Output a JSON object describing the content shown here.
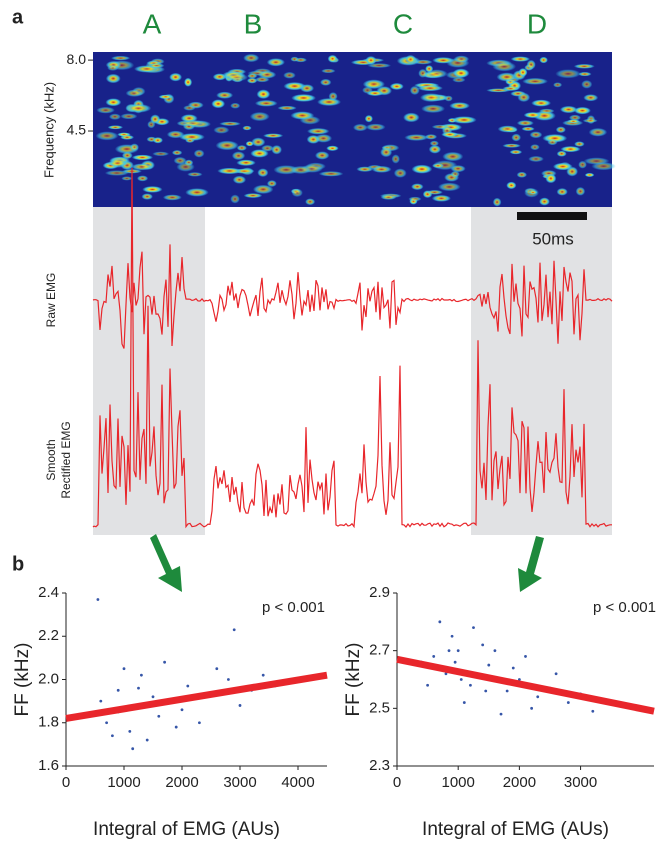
{
  "panel_a": {
    "label": "a",
    "syllables": [
      "A",
      "B",
      "C",
      "D"
    ],
    "spectrogram": {
      "ylabel": "Frequency (kHz)",
      "ylim": [
        0.75,
        8.4
      ],
      "yticks": [
        {
          "value": 8,
          "label": "8.0"
        },
        4.5
      ]
    },
    "scale_bar": "50ms",
    "raw_label": "Raw EMG",
    "smooth_label": [
      "Smooth",
      "Rectified EMG"
    ]
  },
  "panel_b": {
    "label": "b"
  },
  "chart_data": [
    {
      "type": "scatter",
      "annotation": "p < 0.001",
      "xlabel": "Integral of EMG (AUs)",
      "ylabel": "FF (kHz)",
      "xlim": [
        0,
        4500
      ],
      "ylim": [
        1.6,
        2.4
      ],
      "xticks": [
        0,
        1000,
        2000,
        3000,
        4000
      ],
      "yticks": [
        1.6,
        1.8,
        {
          "value": 2.0,
          "label": "2.0"
        },
        2.2,
        2.4
      ],
      "series": [
        {
          "color": "#3656a8",
          "x": [
            900,
            1200,
            1500,
            700,
            1100,
            1300,
            1800,
            2100,
            2500,
            900,
            1600,
            2000,
            2800,
            3200,
            600,
            1000,
            1400,
            1700,
            2300,
            3000,
            3600,
            800,
            1250,
            1900,
            2600,
            550,
            2900,
            1150,
            2200,
            3400
          ],
          "values": [
            1.95,
            1.88,
            1.92,
            1.8,
            1.76,
            2.02,
            1.9,
            1.97,
            1.93,
            1.85,
            1.83,
            1.86,
            2.0,
            1.95,
            1.9,
            2.05,
            1.72,
            2.08,
            1.8,
            1.88,
            1.97,
            1.74,
            1.96,
            1.78,
            2.05,
            2.37,
            2.23,
            1.68,
            1.92,
            2.02
          ]
        }
      ],
      "fit": {
        "color": "#e8262b",
        "x": [
          0,
          4500
        ],
        "values": [
          1.82,
          2.02
        ]
      }
    },
    {
      "type": "scatter",
      "annotation": "p < 0.001",
      "xlabel": "Integral of EMG (AUs)",
      "ylabel": "FF (kHz)",
      "xlim": [
        0,
        4200
      ],
      "ylim": [
        2.3,
        2.9
      ],
      "xticks": [
        0,
        1000,
        2000,
        3000
      ],
      "yticks": [
        2.3,
        2.5,
        2.7,
        2.9
      ],
      "series": [
        {
          "color": "#3656a8",
          "x": [
            800,
            1000,
            1200,
            900,
            1500,
            1800,
            600,
            1100,
            1400,
            2000,
            2300,
            700,
            1300,
            1700,
            2500,
            2800,
            950,
            1600,
            1900,
            2200,
            3000,
            500,
            1250,
            2600,
            3200,
            1050,
            1450,
            850,
            2100,
            400
          ],
          "values": [
            2.62,
            2.7,
            2.58,
            2.75,
            2.65,
            2.56,
            2.68,
            2.52,
            2.72,
            2.6,
            2.54,
            2.8,
            2.62,
            2.48,
            2.57,
            2.52,
            2.66,
            2.7,
            2.64,
            2.5,
            2.55,
            2.58,
            2.78,
            2.62,
            2.49,
            2.6,
            2.56,
            2.7,
            2.68,
            2.66
          ]
        }
      ],
      "fit": {
        "color": "#e8262b",
        "x": [
          0,
          4200
        ],
        "values": [
          2.67,
          2.49
        ]
      }
    }
  ]
}
